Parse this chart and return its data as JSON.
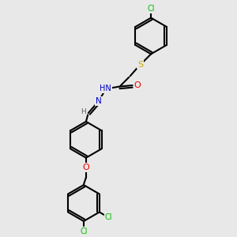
{
  "bg_color": "#e8e8e8",
  "atom_colors": {
    "C": "#000000",
    "H": "#606060",
    "N": "#0000cc",
    "O": "#ee0000",
    "S": "#ccaa00",
    "Cl": "#00bb00"
  },
  "bond_color": "#000000",
  "bond_width": 1.5,
  "figsize": [
    3.0,
    3.0
  ],
  "dpi": 100,
  "font_size": 7.0
}
